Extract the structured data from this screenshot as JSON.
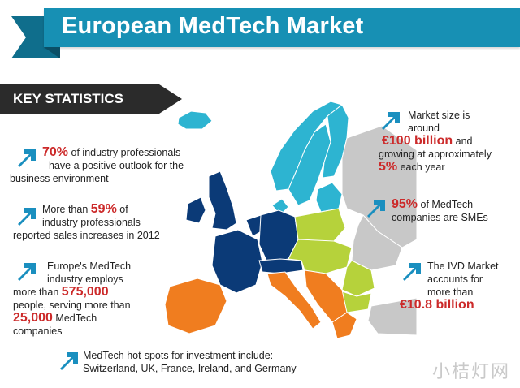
{
  "header": {
    "title": "European MedTech Market"
  },
  "section": {
    "title": "KEY STATISTICS"
  },
  "stats": {
    "outlook": {
      "hl": "70%",
      "line1": "of industry professionals",
      "line2": "have a positive outlook for the",
      "line3": "business environment"
    },
    "sales": {
      "pre": "More than",
      "hl": "59%",
      "post": "of",
      "line2": "industry professionals",
      "line3": "reported sales increases in 2012"
    },
    "employs": {
      "line1": "Europe's MedTech",
      "line2": "industry employs",
      "pre3": "more than",
      "hl1": "575,000",
      "line4": "people, serving more than",
      "hl2": "25,000",
      "post5": "MedTech",
      "line6": "companies"
    },
    "hotspots": {
      "line1": "MedTech hot-spots for investment include:",
      "line2": "Switzerland, UK, France, Ireland, and Germany"
    },
    "market": {
      "line1": "Market size is",
      "line2": "around",
      "hl1": "€100 billion",
      "post3": "and",
      "line4": "growing at approximately",
      "hl2": "5%",
      "post5": "each year"
    },
    "smes": {
      "hl": "95%",
      "post": "of MedTech",
      "line2": "companies are SMEs"
    },
    "ivd": {
      "line1": "The IVD Market",
      "line2": "accounts for",
      "line3": "more than",
      "hl": "€10.8 billion"
    }
  },
  "watermark": "小桔灯网",
  "colors": {
    "banner": "#1790b4",
    "highlight": "#cc2a2a",
    "arrow": "#1a8fbf",
    "map_nordic": "#2db4d1",
    "map_central": "#0b3a77",
    "map_east": "#b6d23b",
    "map_south": "#f07d1f",
    "map_other": "#c8c8c8"
  },
  "icons": {
    "stat_marker": "arrow-up-right-icon"
  }
}
